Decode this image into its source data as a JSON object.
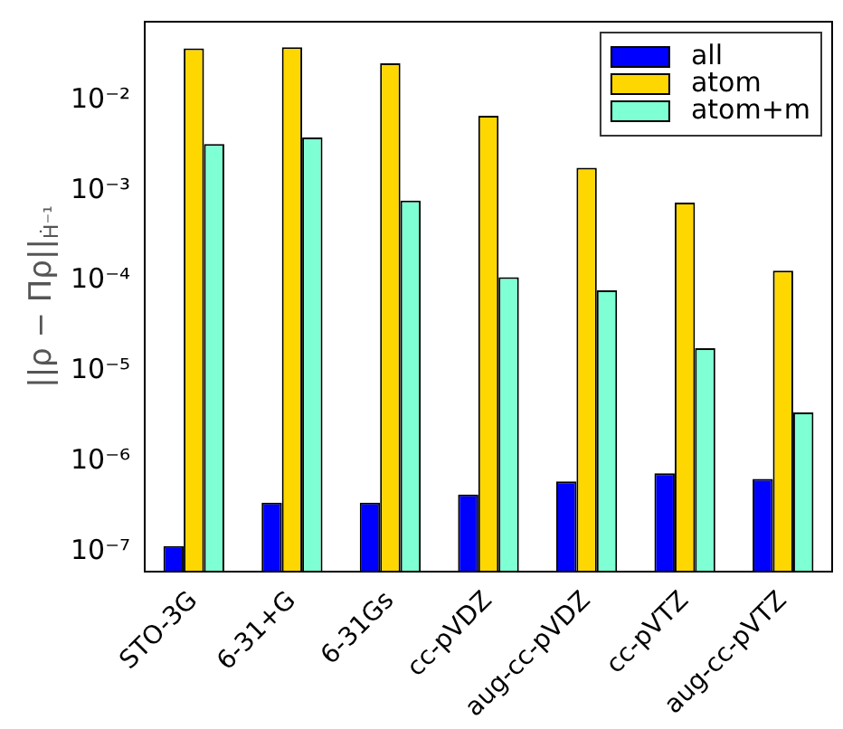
{
  "chart_data": {
    "type": "bar",
    "ylabel": "||ρ − Πρ||$_{Ḣ⁻¹}$",
    "categories": [
      "STO-3G",
      "6-31+G",
      "6-31Gs",
      "cc-pVDZ",
      "aug-cc-pVDZ",
      "cc-pVTZ",
      "aug-cc-pVTZ"
    ],
    "series": [
      {
        "name": "all",
        "color": "#0000ff",
        "values": [
          1.15e-07,
          3.5e-07,
          3.5e-07,
          4.3e-07,
          6e-07,
          7.4e-07,
          6.4e-07
        ]
      },
      {
        "name": "atom",
        "color": "#ffd700",
        "values": [
          0.038,
          0.039,
          0.026,
          0.0068,
          0.0018,
          0.00074,
          0.00013
        ]
      },
      {
        "name": "atom+m",
        "color": "#7fffd4",
        "values": [
          0.0033,
          0.0039,
          0.00078,
          0.00011,
          7.9e-05,
          1.8e-05,
          3.5e-06
        ]
      }
    ],
    "log": "y",
    "ylim": [
      6e-08,
      0.075
    ],
    "yticks": [
      {
        "value": 1e-07,
        "label": "10⁻⁷"
      },
      {
        "value": 1e-06,
        "label": "10⁻⁶"
      },
      {
        "value": 1e-05,
        "label": "10⁻⁵"
      },
      {
        "value": 0.0001,
        "label": "10⁻⁴"
      },
      {
        "value": 0.001,
        "label": "10⁻³"
      },
      {
        "value": 0.01,
        "label": "10⁻²"
      }
    ],
    "grid": false,
    "legend": "top right"
  }
}
